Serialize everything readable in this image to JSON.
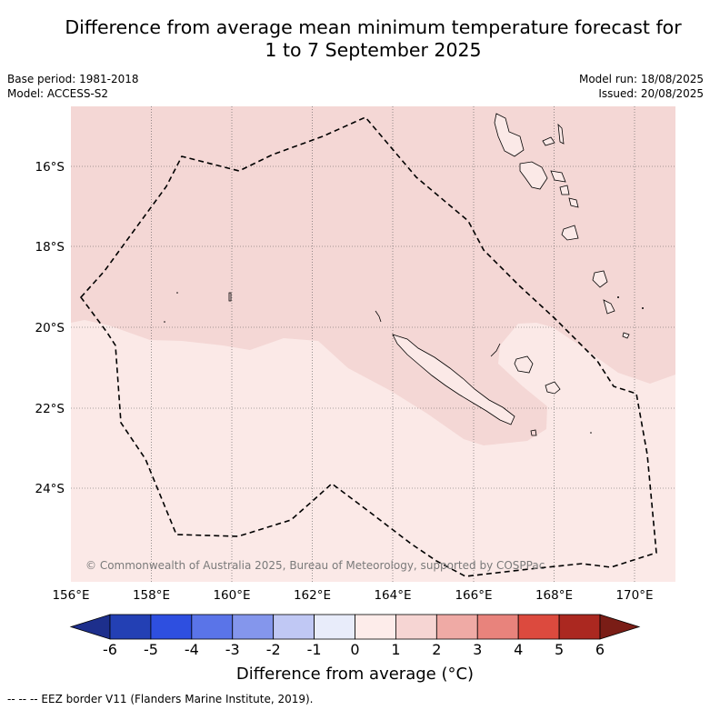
{
  "title_line1": "Difference from average mean minimum temperature forecast for",
  "title_line2": "1 to 7 September 2025",
  "base_period": "Base period: 1981-2018",
  "model": "Model: ACCESS-S2",
  "model_run": "Model run: 18/08/2025",
  "issued": "Issued: 20/08/2025",
  "copyright": "© Commonwealth of Australia 2025, Bureau of Meteorology, supported by COSPPac",
  "lat_labels": [
    "16°S",
    "18°S",
    "20°S",
    "22°S",
    "24°S"
  ],
  "lon_labels": [
    "156°E",
    "158°E",
    "160°E",
    "162°E",
    "164°E",
    "166°E",
    "168°E",
    "170°E"
  ],
  "colorbar": {
    "title": "Difference from average (°C)",
    "tick_labels": [
      "-6",
      "-5",
      "-4",
      "-3",
      "-2",
      "-1",
      "0",
      "1",
      "2",
      "3",
      "4",
      "5",
      "6"
    ],
    "colors": [
      "#1d2f8c",
      "#2340b4",
      "#2e4fe0",
      "#5a74e8",
      "#8496ec",
      "#c0c8f4",
      "#e8ecfa",
      "#fdecea",
      "#f6d5d3",
      "#efaaa5",
      "#e8837c",
      "#dc4a3e",
      "#ab2820",
      "#7a1d16"
    ]
  },
  "map_colors": {
    "warm_0_1": "#fbe9e7",
    "warm_1_2": "#f4d7d5"
  },
  "footnote": "--  --  -- EEZ border V11 (Flanders Marine Institute, 2019)."
}
